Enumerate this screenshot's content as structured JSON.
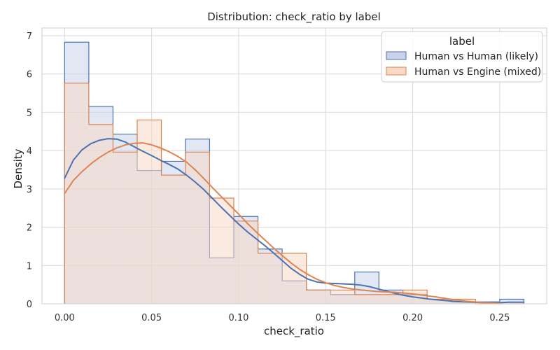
{
  "chart_data": {
    "type": "histogram",
    "title": "Distribution: check_ratio by label",
    "xlabel": "check_ratio",
    "ylabel": "Density",
    "xlim": [
      -0.013,
      0.277
    ],
    "ylim": [
      0,
      7.2
    ],
    "xticks": [
      0.0,
      0.05,
      0.1,
      0.15,
      0.2,
      0.25
    ],
    "xtick_labels": [
      "0.00",
      "0.05",
      "0.10",
      "0.15",
      "0.20",
      "0.25"
    ],
    "yticks": [
      0,
      1,
      2,
      3,
      4,
      5,
      6,
      7
    ],
    "ytick_labels": [
      "0",
      "1",
      "2",
      "3",
      "4",
      "5",
      "6",
      "7"
    ],
    "grid": true,
    "legend": {
      "title": "label",
      "placement": "top-right"
    },
    "bin_edges": [
      0.0,
      0.0139,
      0.0278,
      0.0417,
      0.0556,
      0.0694,
      0.0833,
      0.0972,
      0.1111,
      0.125,
      0.1389,
      0.1528,
      0.1667,
      0.1806,
      0.1944,
      0.2083,
      0.2222,
      0.2361,
      0.25,
      0.2639
    ],
    "series": [
      {
        "name": "Human vs Human (likely)",
        "line_color": "#4c72b0",
        "fill_color": "#c8d3ea",
        "densities": [
          6.83,
          5.15,
          4.43,
          3.48,
          3.72,
          4.3,
          1.2,
          2.28,
          1.43,
          0.6,
          0.36,
          0.24,
          0.83,
          0.36,
          0.24,
          0.12,
          0.05,
          0.05,
          0.12
        ],
        "kde": [
          [
            0.0,
            3.28
          ],
          [
            0.005,
            3.75
          ],
          [
            0.01,
            4.02
          ],
          [
            0.015,
            4.18
          ],
          [
            0.02,
            4.27
          ],
          [
            0.025,
            4.31
          ],
          [
            0.03,
            4.3
          ],
          [
            0.035,
            4.22
          ],
          [
            0.04,
            4.1
          ],
          [
            0.045,
            3.98
          ],
          [
            0.05,
            3.87
          ],
          [
            0.055,
            3.75
          ],
          [
            0.06,
            3.64
          ],
          [
            0.065,
            3.52
          ],
          [
            0.07,
            3.36
          ],
          [
            0.075,
            3.18
          ],
          [
            0.08,
            2.98
          ],
          [
            0.085,
            2.75
          ],
          [
            0.09,
            2.52
          ],
          [
            0.095,
            2.3
          ],
          [
            0.1,
            2.08
          ],
          [
            0.105,
            1.88
          ],
          [
            0.11,
            1.7
          ],
          [
            0.115,
            1.52
          ],
          [
            0.12,
            1.33
          ],
          [
            0.125,
            1.13
          ],
          [
            0.13,
            0.93
          ],
          [
            0.135,
            0.77
          ],
          [
            0.14,
            0.64
          ],
          [
            0.145,
            0.57
          ],
          [
            0.15,
            0.54
          ],
          [
            0.155,
            0.53
          ],
          [
            0.16,
            0.52
          ],
          [
            0.165,
            0.51
          ],
          [
            0.17,
            0.49
          ],
          [
            0.175,
            0.45
          ],
          [
            0.18,
            0.39
          ],
          [
            0.185,
            0.33
          ],
          [
            0.19,
            0.27
          ],
          [
            0.195,
            0.22
          ],
          [
            0.2,
            0.18
          ],
          [
            0.205,
            0.15
          ],
          [
            0.21,
            0.12
          ],
          [
            0.215,
            0.1
          ],
          [
            0.22,
            0.08
          ],
          [
            0.225,
            0.06
          ],
          [
            0.23,
            0.05
          ],
          [
            0.235,
            0.04
          ],
          [
            0.24,
            0.03
          ],
          [
            0.245,
            0.03
          ],
          [
            0.25,
            0.03
          ],
          [
            0.255,
            0.04
          ],
          [
            0.26,
            0.04
          ],
          [
            0.2639,
            0.04
          ]
        ]
      },
      {
        "name": "Human vs Engine (mixed)",
        "line_color": "#dd8452",
        "fill_color": "#f8d9c6",
        "densities": [
          5.76,
          4.68,
          3.96,
          4.8,
          3.36,
          3.96,
          2.76,
          2.16,
          1.32,
          1.32,
          0.36,
          0.36,
          0.24,
          0.24,
          0.36,
          0.12,
          0.12,
          0.0,
          0.0
        ],
        "kde": [
          [
            0.0,
            2.88
          ],
          [
            0.005,
            3.22
          ],
          [
            0.01,
            3.45
          ],
          [
            0.015,
            3.65
          ],
          [
            0.02,
            3.82
          ],
          [
            0.025,
            3.96
          ],
          [
            0.03,
            4.07
          ],
          [
            0.035,
            4.15
          ],
          [
            0.04,
            4.19
          ],
          [
            0.045,
            4.2
          ],
          [
            0.05,
            4.15
          ],
          [
            0.055,
            4.07
          ],
          [
            0.06,
            3.97
          ],
          [
            0.065,
            3.85
          ],
          [
            0.07,
            3.7
          ],
          [
            0.075,
            3.5
          ],
          [
            0.08,
            3.27
          ],
          [
            0.085,
            3.03
          ],
          [
            0.09,
            2.8
          ],
          [
            0.095,
            2.57
          ],
          [
            0.1,
            2.34
          ],
          [
            0.105,
            2.1
          ],
          [
            0.11,
            1.88
          ],
          [
            0.115,
            1.67
          ],
          [
            0.12,
            1.46
          ],
          [
            0.125,
            1.26
          ],
          [
            0.13,
            1.07
          ],
          [
            0.135,
            0.9
          ],
          [
            0.14,
            0.76
          ],
          [
            0.145,
            0.64
          ],
          [
            0.15,
            0.55
          ],
          [
            0.155,
            0.48
          ],
          [
            0.16,
            0.43
          ],
          [
            0.165,
            0.39
          ],
          [
            0.17,
            0.36
          ],
          [
            0.175,
            0.34
          ],
          [
            0.18,
            0.32
          ],
          [
            0.185,
            0.31
          ],
          [
            0.19,
            0.3
          ],
          [
            0.195,
            0.28
          ],
          [
            0.2,
            0.26
          ],
          [
            0.205,
            0.23
          ],
          [
            0.21,
            0.2
          ],
          [
            0.215,
            0.17
          ],
          [
            0.22,
            0.13
          ],
          [
            0.225,
            0.1
          ],
          [
            0.23,
            0.07
          ],
          [
            0.235,
            0.05
          ],
          [
            0.24,
            0.03
          ],
          [
            0.245,
            0.02
          ],
          [
            0.25,
            0.01
          ]
        ]
      }
    ]
  }
}
